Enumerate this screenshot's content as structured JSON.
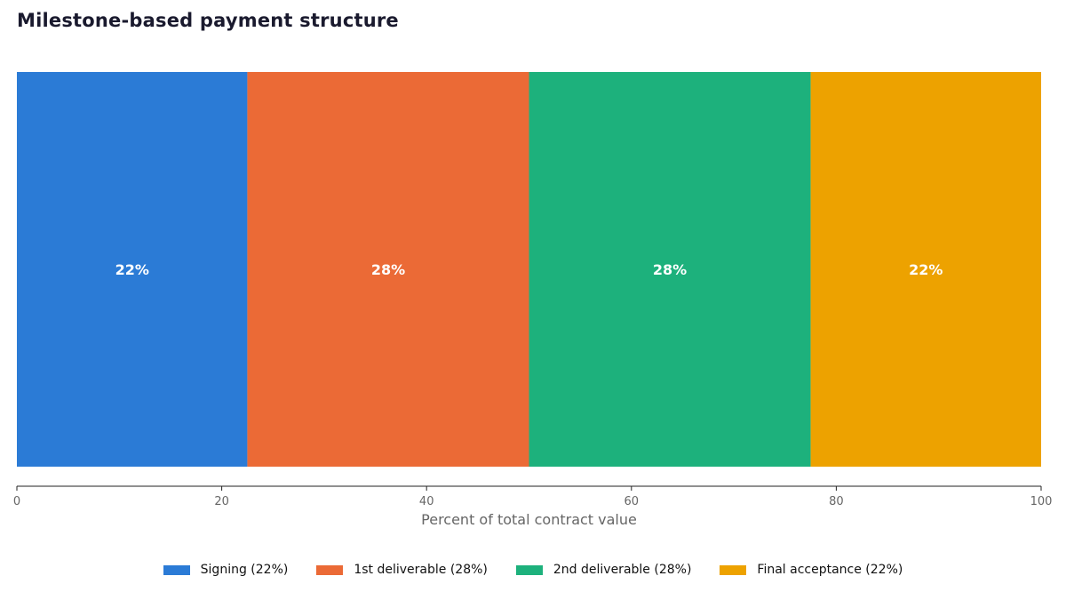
{
  "chart_data": {
    "type": "bar",
    "orientation": "horizontal-stacked",
    "title": "Milestone-based payment structure",
    "xlabel": "Percent of total contract value",
    "ylabel": "",
    "xlim": [
      0,
      100
    ],
    "x_ticks": [
      "0",
      "20",
      "40",
      "60",
      "80",
      "100"
    ],
    "grid": false,
    "legend_position": "bottom-center",
    "series": [
      {
        "name": "Signing (22%)",
        "value": 22.5,
        "label": "22%",
        "color": "#2b7bd6"
      },
      {
        "name": "1st deliverable (28%)",
        "value": 27.5,
        "label": "28%",
        "color": "#eb6a36"
      },
      {
        "name": "2nd deliverable (28%)",
        "value": 27.5,
        "label": "28%",
        "color": "#1db17c"
      },
      {
        "name": "Final acceptance (22%)",
        "value": 22.5,
        "label": "22%",
        "color": "#eda200"
      }
    ]
  }
}
